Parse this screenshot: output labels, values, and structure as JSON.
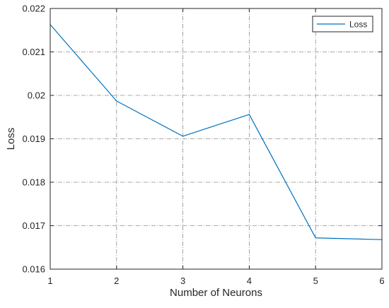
{
  "chart_data": {
    "type": "line",
    "xlabel": "Number of Neurons",
    "ylabel": "Loss",
    "xlim": [
      1,
      6
    ],
    "ylim": [
      0.016,
      0.022
    ],
    "x_ticks": [
      "1",
      "2",
      "3",
      "4",
      "5",
      "6"
    ],
    "y_ticks": [
      "0.016",
      "0.017",
      "0.018",
      "0.019",
      "0.02",
      "0.021",
      "0.022"
    ],
    "grid": true,
    "legend_position": "top-right",
    "series": [
      {
        "name": "Loss",
        "color": "#0072BD",
        "x": [
          1,
          2,
          3,
          4,
          5,
          6
        ],
        "y": [
          0.02163,
          0.01987,
          0.01906,
          0.01956,
          0.01672,
          0.01668
        ]
      }
    ]
  }
}
